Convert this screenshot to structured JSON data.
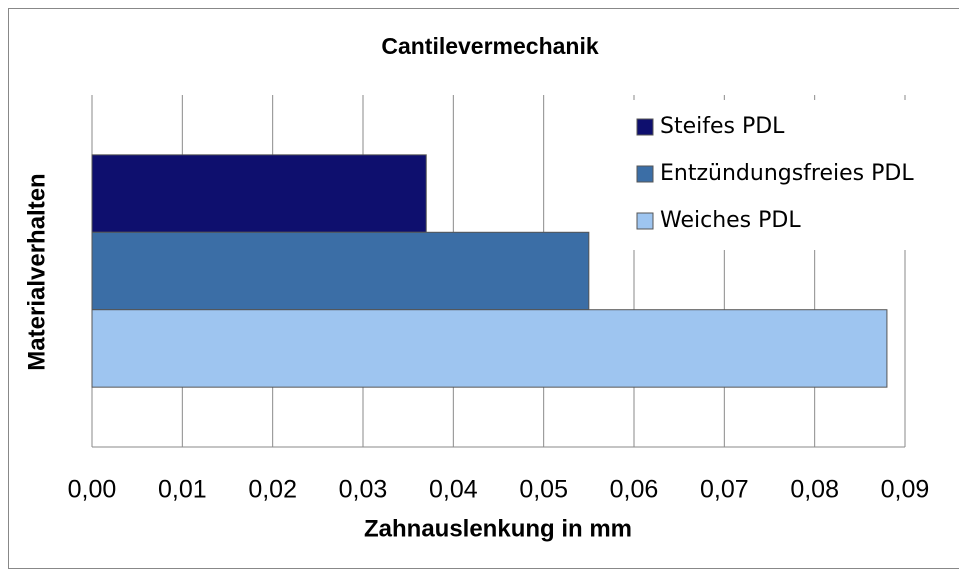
{
  "chart_data": {
    "type": "bar",
    "orientation": "horizontal",
    "title": "Cantilevermechanik",
    "x_label": "Zahnauslenkung in mm",
    "y_label": "Materialverhalten",
    "categories": [
      null
    ],
    "series": [
      {
        "name": "Steifes PDL",
        "color": "#0e0f6e",
        "values": [
          0.037
        ]
      },
      {
        "name": "Entzündungsfreies PDL",
        "color": "#3b6ea6",
        "values": [
          0.055
        ]
      },
      {
        "name": "Weiches PDL",
        "color": "#9ec5f0",
        "values": [
          0.088
        ]
      }
    ],
    "xlim": [
      0,
      0.09
    ],
    "xticks": [
      {
        "value": 0,
        "label": "0,00"
      },
      {
        "value": 0.01,
        "label": "0,01"
      },
      {
        "value": 0.02,
        "label": "0,02"
      },
      {
        "value": 0.03,
        "label": "0,03"
      },
      {
        "value": 0.04,
        "label": "0,04"
      },
      {
        "value": 0.05,
        "label": "0,05"
      },
      {
        "value": 0.06,
        "label": "0,06"
      },
      {
        "value": 0.07,
        "label": "0,07"
      },
      {
        "value": 0.08,
        "label": "0,08"
      },
      {
        "value": 0.09,
        "label": "0,09"
      }
    ],
    "grid": true,
    "legend": "upper right"
  }
}
